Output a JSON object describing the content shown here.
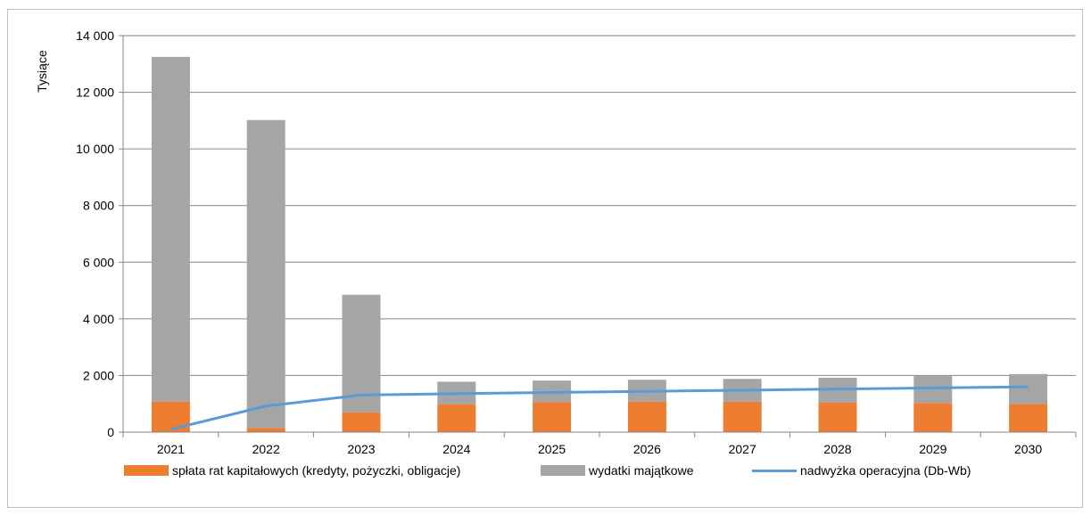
{
  "chart_data": {
    "type": "bar",
    "stacked": true,
    "ylabel": "Tysiące",
    "ylim": [
      0,
      14000
    ],
    "yticks": [
      0,
      2000,
      4000,
      6000,
      8000,
      10000,
      12000,
      14000
    ],
    "ytick_labels": [
      "0",
      "2 000",
      "4 000",
      "6 000",
      "8 000",
      "10 000",
      "12 000",
      "14 000"
    ],
    "grid": true,
    "legend_position": "bottom",
    "categories": [
      "2021",
      "2022",
      "2023",
      "2024",
      "2025",
      "2026",
      "2027",
      "2028",
      "2029",
      "2030"
    ],
    "series": [
      {
        "name": "spłata rat kapitałowych (kredyty, pożyczki, obligacje)",
        "type": "bar",
        "color": "#ed7d31",
        "values": [
          1080,
          150,
          700,
          980,
          1060,
          1080,
          1080,
          1040,
          1030,
          1000
        ]
      },
      {
        "name": "wydatki majątkowe",
        "type": "bar",
        "color": "#a5a5a5",
        "values": [
          12170,
          10870,
          4150,
          800,
          760,
          770,
          800,
          880,
          950,
          1050
        ]
      },
      {
        "name": "nadwyżka operacyjna (Db-Wb)",
        "type": "line",
        "color": "#5b9bd5",
        "values": [
          100,
          920,
          1310,
          1360,
          1400,
          1440,
          1480,
          1520,
          1560,
          1600
        ]
      }
    ]
  }
}
